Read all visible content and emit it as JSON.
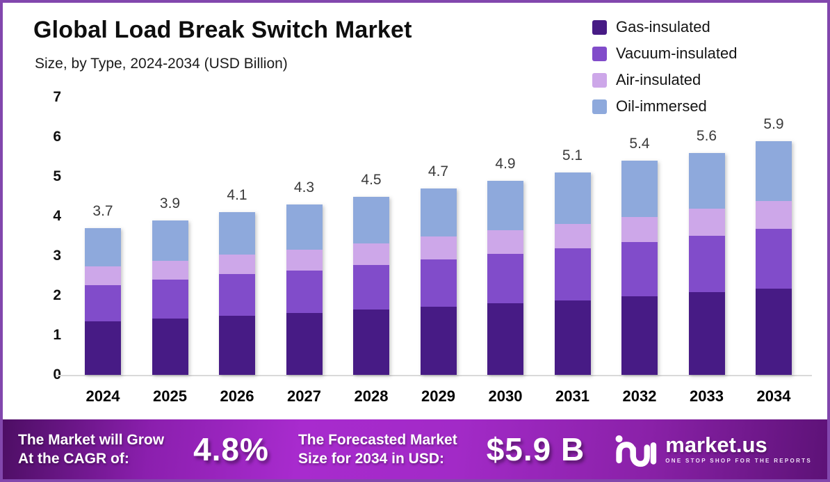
{
  "chart_data": {
    "type": "bar",
    "stacked": true,
    "title": "Global Load Break Switch Market",
    "subtitle": "Size, by Type, 2024-2034 (USD Billion)",
    "unit": "USD Billion",
    "categories": [
      "2024",
      "2025",
      "2026",
      "2027",
      "2028",
      "2029",
      "2030",
      "2031",
      "2032",
      "2033",
      "2034"
    ],
    "totals": [
      3.7,
      3.9,
      4.1,
      4.3,
      4.5,
      4.7,
      4.9,
      5.1,
      5.4,
      5.6,
      5.9
    ],
    "series": [
      {
        "name": "Gas-insulated",
        "color": "#471b85",
        "values": [
          1.35,
          1.43,
          1.5,
          1.57,
          1.65,
          1.72,
          1.81,
          1.88,
          1.99,
          2.08,
          2.17
        ]
      },
      {
        "name": "Vacuum-insulated",
        "color": "#814cca",
        "values": [
          0.92,
          0.97,
          1.04,
          1.07,
          1.12,
          1.2,
          1.25,
          1.31,
          1.36,
          1.43,
          1.51
        ]
      },
      {
        "name": "Air-insulated",
        "color": "#cda7e9",
        "values": [
          0.47,
          0.48,
          0.49,
          0.52,
          0.55,
          0.57,
          0.59,
          0.62,
          0.63,
          0.68,
          0.7
        ]
      },
      {
        "name": "Oil-immersed",
        "color": "#8ea9dc",
        "values": [
          0.96,
          1.02,
          1.07,
          1.14,
          1.18,
          1.21,
          1.25,
          1.29,
          1.42,
          1.41,
          1.52
        ]
      }
    ],
    "ylim": [
      0,
      7
    ],
    "yticks": [
      0,
      1,
      2,
      3,
      4,
      5,
      6,
      7
    ],
    "grid": false,
    "legend_position": "top-right",
    "bar_value_labels": [
      "3.7",
      "3.9",
      "4.1",
      "4.3",
      "4.5",
      "4.7",
      "4.9",
      "5.1",
      "5.4",
      "5.6",
      "5.9"
    ]
  },
  "banner": {
    "cagr_label_lines": [
      "The Market will Grow",
      "At the CAGR of:"
    ],
    "cagr_value": "4.8%",
    "forecast_label_lines": [
      "The Forecasted Market",
      "Size for 2034 in USD:"
    ],
    "forecast_value": "$5.9 B",
    "brand": {
      "name": "market.us",
      "tagline": "ONE STOP SHOP FOR THE REPORTS"
    }
  }
}
